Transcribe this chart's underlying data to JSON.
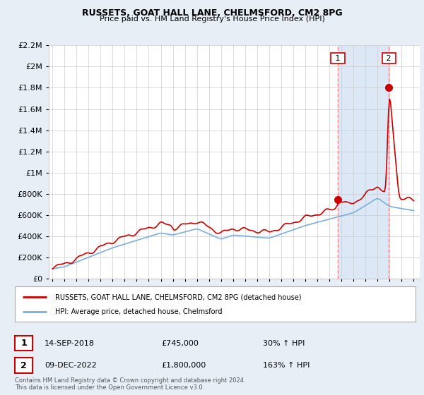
{
  "title": "RUSSETS, GOAT HALL LANE, CHELMSFORD, CM2 8PG",
  "subtitle": "Price paid vs. HM Land Registry's House Price Index (HPI)",
  "legend_line1": "RUSSETS, GOAT HALL LANE, CHELMSFORD, CM2 8PG (detached house)",
  "legend_line2": "HPI: Average price, detached house, Chelmsford",
  "annotation1_label": "1",
  "annotation1_date": "14-SEP-2018",
  "annotation1_price": "£745,000",
  "annotation1_hpi": "30% ↑ HPI",
  "annotation2_label": "2",
  "annotation2_date": "09-DEC-2022",
  "annotation2_price": "£1,800,000",
  "annotation2_hpi": "163% ↑ HPI",
  "footer": "Contains HM Land Registry data © Crown copyright and database right 2024.\nThis data is licensed under the Open Government Licence v3.0.",
  "background_color": "#e8eef5",
  "plot_background": "#ffffff",
  "shade_color": "#dce8f5",
  "hpi_line_color": "#7aaedc",
  "price_line_color": "#cc0000",
  "vline_color": "#ff8888",
  "dot_color": "#cc0000",
  "ylim_max": 2200000,
  "yticks": [
    0,
    200000,
    400000,
    600000,
    800000,
    1000000,
    1200000,
    1400000,
    1600000,
    1800000,
    2000000,
    2200000
  ],
  "sale1_year": 2018.71,
  "sale1_price": 745000,
  "sale2_year": 2022.94,
  "sale2_price": 1800000
}
